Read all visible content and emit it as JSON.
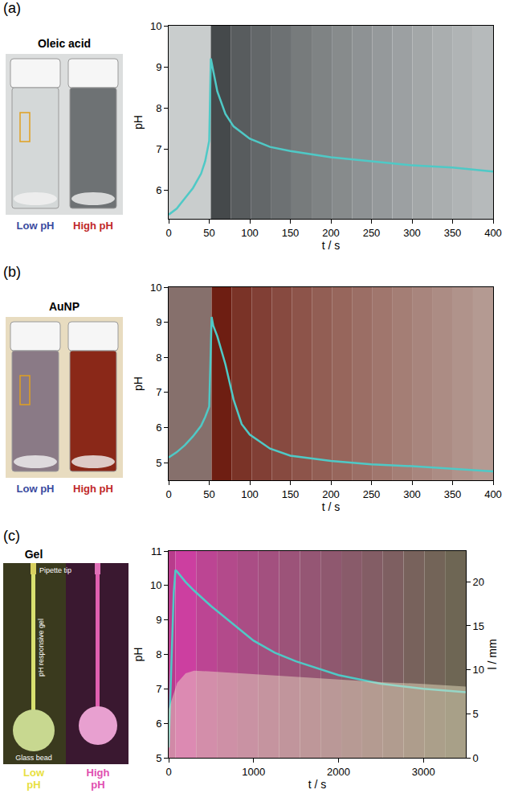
{
  "chart_data": [
    {
      "label": "(a)",
      "type": "line",
      "photo": {
        "title": "Oleic acid",
        "labels": [
          "Low pH",
          "High pH"
        ]
      },
      "x": [
        0,
        10,
        20,
        30,
        40,
        45,
        50,
        51,
        52,
        55,
        60,
        70,
        80,
        100,
        125,
        150,
        200,
        250,
        300,
        350,
        400
      ],
      "series": [
        {
          "name": "pH",
          "color": "#4fc9c6",
          "values": [
            5.4,
            5.55,
            5.8,
            6.05,
            6.4,
            6.7,
            7.2,
            8.2,
            9.2,
            8.9,
            8.4,
            7.85,
            7.55,
            7.25,
            7.05,
            6.95,
            6.8,
            6.7,
            6.6,
            6.55,
            6.45
          ]
        }
      ],
      "xlabel": "t / s",
      "ylabel": "pH",
      "xlim": [
        0,
        400
      ],
      "xticks": [
        0,
        50,
        100,
        150,
        200,
        250,
        300,
        350,
        400
      ],
      "ylim": [
        5.3,
        10
      ],
      "yticks": [
        6,
        7,
        8,
        9,
        10
      ],
      "grid": false
    },
    {
      "label": "(b)",
      "type": "line",
      "photo": {
        "title": "AuNP",
        "labels": [
          "Low pH",
          "High pH"
        ]
      },
      "x": [
        0,
        10,
        20,
        30,
        40,
        45,
        50,
        51,
        53,
        55,
        60,
        70,
        80,
        90,
        100,
        125,
        150,
        200,
        250,
        300,
        350,
        400
      ],
      "series": [
        {
          "name": "pH",
          "color": "#4fc9c6",
          "values": [
            5.15,
            5.3,
            5.5,
            5.75,
            6.05,
            6.3,
            6.6,
            7.5,
            9.15,
            8.9,
            8.6,
            7.8,
            6.8,
            6.1,
            5.8,
            5.4,
            5.2,
            5.05,
            4.95,
            4.9,
            4.82,
            4.75
          ]
        }
      ],
      "xlabel": "t / s",
      "ylabel": "pH",
      "xlim": [
        0,
        400
      ],
      "xticks": [
        0,
        50,
        100,
        150,
        200,
        250,
        300,
        350,
        400
      ],
      "ylim": [
        4.5,
        10
      ],
      "yticks": [
        5,
        6,
        7,
        8,
        9,
        10
      ],
      "grid": false
    },
    {
      "label": "(c)",
      "type": "line",
      "photo": {
        "title": "Gel",
        "labels": [
          "Low pH",
          "High pH"
        ],
        "annotations": [
          "Pipette tip",
          "pH responsive gel",
          "Glass bead"
        ]
      },
      "series": [
        {
          "name": "l",
          "color": "#f0e6c8",
          "axis": "y2",
          "type": "area",
          "x": [
            0,
            100,
            200,
            300,
            500,
            1000,
            1500,
            2000,
            2500,
            3000,
            3500
          ],
          "values": [
            5.5,
            8.5,
            9.6,
            9.9,
            9.8,
            9.5,
            9.2,
            8.9,
            8.6,
            8.4,
            8.1
          ]
        },
        {
          "name": "pH",
          "color": "#4fc9c6",
          "x": [
            0,
            30,
            60,
            80,
            100,
            200,
            300,
            500,
            750,
            1000,
            1250,
            1500,
            2000,
            2500,
            3000,
            3500
          ],
          "values": [
            5.3,
            7.5,
            9.8,
            10.45,
            10.4,
            10.1,
            9.85,
            9.4,
            8.9,
            8.4,
            8.05,
            7.8,
            7.4,
            7.15,
            7.0,
            6.9
          ]
        }
      ],
      "xlabel": "t / s",
      "ylabel": "pH",
      "y2label": "l / mm",
      "xlim": [
        0,
        3500
      ],
      "xticks": [
        0,
        1000,
        2000,
        3000
      ],
      "ylim": [
        5,
        11
      ],
      "yticks": [
        5,
        6,
        7,
        8,
        9,
        10,
        11
      ],
      "y2lim": [
        0,
        23.5
      ],
      "y2ticks": [
        0,
        5,
        10,
        15,
        20
      ],
      "grid": false
    }
  ]
}
